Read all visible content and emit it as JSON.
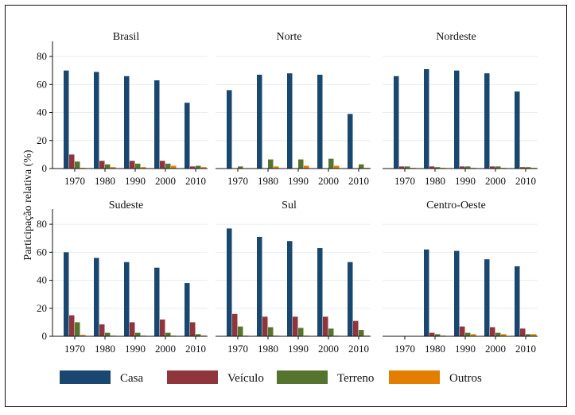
{
  "chart_data": {
    "type": "bar",
    "ylabel": "Participação relativa (%)",
    "ylim": [
      0,
      88
    ],
    "yticks": [
      0,
      20,
      40,
      60,
      80
    ],
    "categories": [
      "1970",
      "1980",
      "1990",
      "2000",
      "2010"
    ],
    "series_names": [
      "Casa",
      "Veículo",
      "Terreno",
      "Outros"
    ],
    "colors": [
      "#1a476f",
      "#90353b",
      "#55752f",
      "#e37e00"
    ],
    "grid": true,
    "legend_position": "bottom",
    "panels": [
      {
        "title": "Brasil",
        "series": [
          {
            "name": "Casa",
            "values": [
              70,
              69,
              66,
              63,
              47
            ]
          },
          {
            "name": "Veículo",
            "values": [
              10,
              5.5,
              5.5,
              5.5,
              1.5
            ]
          },
          {
            "name": "Terreno",
            "values": [
              5,
              3,
              3.5,
              3.5,
              2
            ]
          },
          {
            "name": "Outros",
            "values": [
              0.5,
              1,
              1,
              2,
              1
            ]
          }
        ]
      },
      {
        "title": "Norte",
        "series": [
          {
            "name": "Casa",
            "values": [
              56,
              67,
              68,
              67,
              39
            ]
          },
          {
            "name": "Veículo",
            "values": [
              0,
              0,
              0,
              0,
              0
            ]
          },
          {
            "name": "Terreno",
            "values": [
              1.5,
              6.5,
              6.5,
              7,
              3
            ]
          },
          {
            "name": "Outros",
            "values": [
              0,
              1.5,
              2,
              2,
              0.5
            ]
          }
        ]
      },
      {
        "title": "Nordeste",
        "series": [
          {
            "name": "Casa",
            "values": [
              66,
              71,
              70,
              68,
              55
            ]
          },
          {
            "name": "Veículo",
            "values": [
              1.5,
              1.5,
              1.5,
              1.5,
              1
            ]
          },
          {
            "name": "Terreno",
            "values": [
              1.5,
              1,
              1.5,
              1.5,
              1
            ]
          },
          {
            "name": "Outros",
            "values": [
              0.5,
              0.5,
              0.5,
              0.5,
              0.5
            ]
          }
        ]
      },
      {
        "title": "Sudeste",
        "series": [
          {
            "name": "Casa",
            "values": [
              60,
              56,
              53,
              49,
              38
            ]
          },
          {
            "name": "Veículo",
            "values": [
              15,
              8.5,
              10,
              12,
              10
            ]
          },
          {
            "name": "Terreno",
            "values": [
              10,
              2.5,
              2.5,
              2.5,
              1.5
            ]
          },
          {
            "name": "Outros",
            "values": [
              1,
              0.5,
              0.5,
              0.5,
              0.5
            ]
          }
        ]
      },
      {
        "title": "Sul",
        "series": [
          {
            "name": "Casa",
            "values": [
              77,
              71,
              68,
              63,
              53
            ]
          },
          {
            "name": "Veículo",
            "values": [
              16,
              14,
              14,
              14,
              11
            ]
          },
          {
            "name": "Terreno",
            "values": [
              7,
              6.5,
              6,
              5.5,
              4.5
            ]
          },
          {
            "name": "Outros",
            "values": [
              0.5,
              0.5,
              0.5,
              0.5,
              0.5
            ]
          }
        ]
      },
      {
        "title": "Centro-Oeste",
        "series": [
          {
            "name": "Casa",
            "values": [
              0,
              62,
              61,
              55,
              50
            ]
          },
          {
            "name": "Veículo",
            "values": [
              0,
              2.5,
              7,
              6.5,
              5.5
            ]
          },
          {
            "name": "Terreno",
            "values": [
              0,
              1.5,
              2.5,
              2.5,
              1.5
            ]
          },
          {
            "name": "Outros",
            "values": [
              0,
              0.5,
              1.5,
              1.5,
              1.5
            ]
          }
        ]
      }
    ]
  }
}
